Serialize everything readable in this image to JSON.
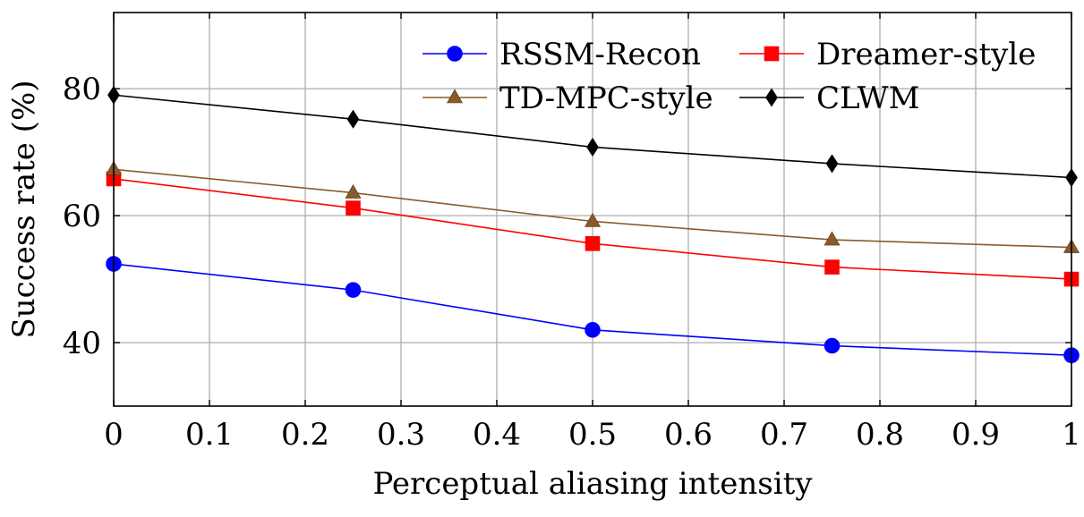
{
  "chart_data": {
    "type": "line",
    "xlabel": "Perceptual aliasing intensity",
    "ylabel": "Success rate (%)",
    "xlim": [
      0,
      1
    ],
    "ylim": [
      30,
      92
    ],
    "xticks": [
      0,
      0.1,
      0.2,
      0.3,
      0.4,
      0.5,
      0.6,
      0.7,
      0.8,
      0.9,
      1
    ],
    "xtick_labels": [
      "0",
      "0.1",
      "0.2",
      "0.3",
      "0.4",
      "0.5",
      "0.6",
      "0.7",
      "0.8",
      "0.9",
      "1"
    ],
    "yticks": [
      40,
      60,
      80
    ],
    "ytick_labels": [
      "40",
      "60",
      "80"
    ],
    "grid": true,
    "legend_position": "top-right",
    "x": [
      0,
      0.25,
      0.5,
      0.75,
      1
    ],
    "series": [
      {
        "name": "RSSM-Recon",
        "values": [
          52.4,
          48.3,
          42.0,
          39.5,
          38.0
        ],
        "color": "#0000ff",
        "marker": "circle"
      },
      {
        "name": "Dreamer-style",
        "values": [
          65.8,
          61.2,
          55.6,
          51.9,
          50.0
        ],
        "color": "#ff0000",
        "marker": "square"
      },
      {
        "name": "TD-MPC-style",
        "values": [
          67.3,
          63.6,
          59.1,
          56.2,
          55.0
        ],
        "color": "#8b5a2b",
        "marker": "triangle"
      },
      {
        "name": "CLWM",
        "values": [
          79.0,
          75.2,
          70.8,
          68.2,
          66.0
        ],
        "color": "#000000",
        "marker": "diamond"
      }
    ]
  }
}
